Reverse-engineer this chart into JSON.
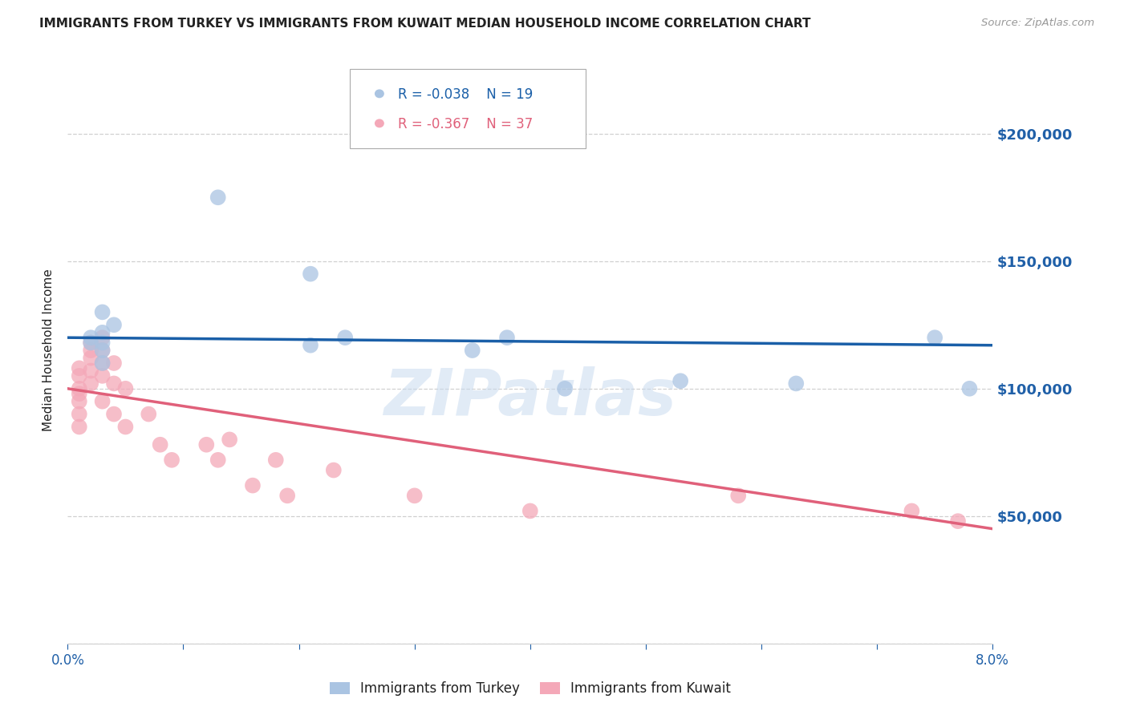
{
  "title": "IMMIGRANTS FROM TURKEY VS IMMIGRANTS FROM KUWAIT MEDIAN HOUSEHOLD INCOME CORRELATION CHART",
  "source": "Source: ZipAtlas.com",
  "ylabel": "Median Household Income",
  "y_ticks": [
    0,
    50000,
    100000,
    150000,
    200000
  ],
  "y_tick_labels": [
    "",
    "$50,000",
    "$100,000",
    "$150,000",
    "$200,000"
  ],
  "x_min": 0.0,
  "x_max": 0.08,
  "y_min": 0,
  "y_max": 230000,
  "legend_R_turkey": "R = -0.038",
  "legend_N_turkey": "N = 19",
  "legend_R_kuwait": "R = -0.367",
  "legend_N_kuwait": "N = 37",
  "label_turkey": "Immigrants from Turkey",
  "label_kuwait": "Immigrants from Kuwait",
  "color_turkey": "#aac4e2",
  "color_kuwait": "#f4a8b8",
  "line_color_turkey": "#1a5fa8",
  "line_color_kuwait": "#e0607a",
  "watermark": "ZIPatlas",
  "turkey_x": [
    0.002,
    0.002,
    0.003,
    0.003,
    0.003,
    0.003,
    0.003,
    0.004,
    0.013,
    0.021,
    0.024,
    0.021,
    0.035,
    0.038,
    0.043,
    0.053,
    0.063,
    0.075,
    0.078
  ],
  "turkey_y": [
    120000,
    118000,
    130000,
    122000,
    118000,
    115000,
    110000,
    125000,
    175000,
    145000,
    120000,
    117000,
    115000,
    120000,
    100000,
    103000,
    102000,
    120000,
    100000
  ],
  "kuwait_x": [
    0.001,
    0.001,
    0.001,
    0.001,
    0.001,
    0.001,
    0.001,
    0.002,
    0.002,
    0.002,
    0.002,
    0.002,
    0.003,
    0.003,
    0.003,
    0.003,
    0.003,
    0.004,
    0.004,
    0.004,
    0.005,
    0.005,
    0.007,
    0.008,
    0.009,
    0.012,
    0.013,
    0.014,
    0.016,
    0.018,
    0.019,
    0.023,
    0.03,
    0.04,
    0.058,
    0.073,
    0.077
  ],
  "kuwait_y": [
    100000,
    108000,
    105000,
    98000,
    95000,
    90000,
    85000,
    118000,
    115000,
    112000,
    107000,
    102000,
    120000,
    115000,
    110000,
    105000,
    95000,
    110000,
    102000,
    90000,
    100000,
    85000,
    90000,
    78000,
    72000,
    78000,
    72000,
    80000,
    62000,
    72000,
    58000,
    68000,
    58000,
    52000,
    58000,
    52000,
    48000
  ],
  "turkey_line_x": [
    0.0,
    0.08
  ],
  "turkey_line_y": [
    120000,
    117000
  ],
  "kuwait_line_x": [
    0.0,
    0.08
  ],
  "kuwait_line_y": [
    100000,
    45000
  ],
  "bg_color": "#ffffff",
  "grid_color": "#d0d0d0",
  "title_color": "#222222",
  "axis_color": "#2060a8",
  "tick_color": "#2060a8"
}
